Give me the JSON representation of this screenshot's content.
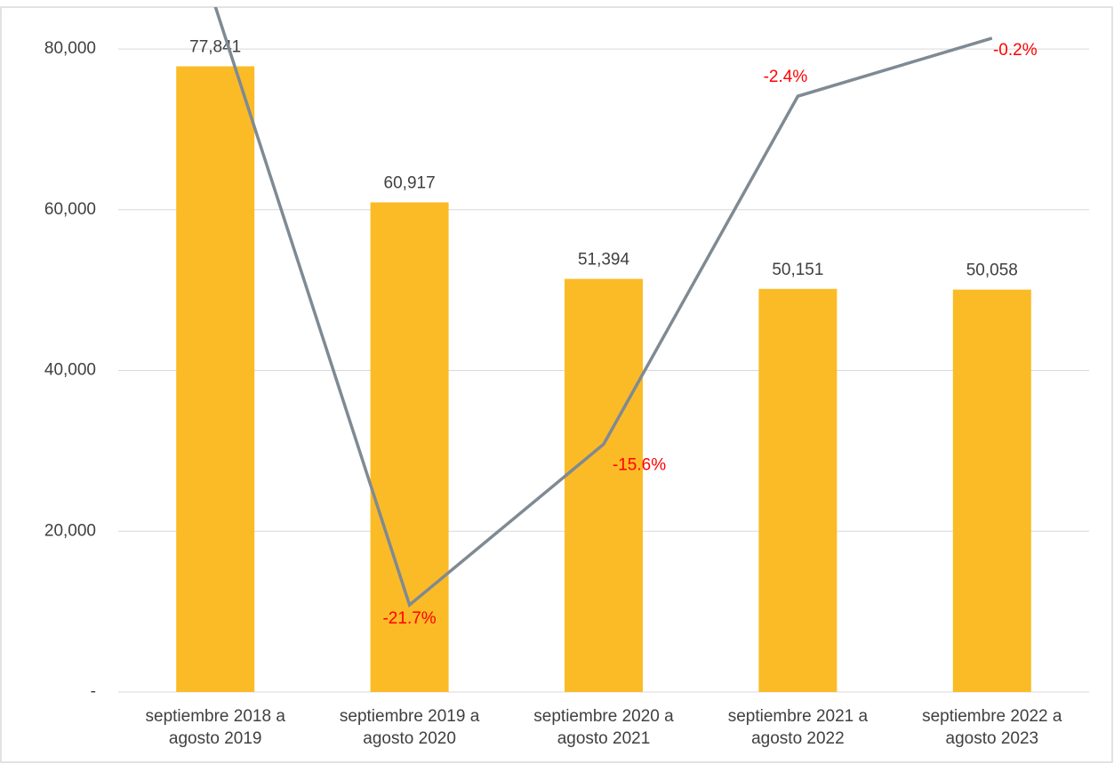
{
  "chart_data": {
    "type": "bar",
    "categories": [
      [
        "septiembre 2018 a",
        "agosto 2019"
      ],
      [
        "septiembre 2019 a",
        "agosto 2020"
      ],
      [
        "septiembre 2020 a",
        "agosto 2021"
      ],
      [
        "septiembre 2021 a",
        "agosto 2022"
      ],
      [
        "septiembre 2022 a",
        "agosto 2023"
      ]
    ],
    "series": [
      {
        "type": "bar",
        "color": "#fbbb27",
        "values": [
          77841,
          60917,
          51394,
          50151,
          50058
        ],
        "value_labels": [
          "77,841",
          "60,917",
          "51,394",
          "50,151",
          "50,058"
        ]
      },
      {
        "type": "line",
        "axis": "y2",
        "color": "#7f8a93",
        "label_color": "#ff0000",
        "values": [
          1,
          -21.7,
          -15.6,
          -2.4,
          -0.2
        ],
        "value_labels": [
          null,
          "-21.7%",
          "-15.6%",
          "-2.4%",
          "-0.2%"
        ]
      }
    ],
    "ylim": [
      0,
      82000
    ],
    "yticks": [
      {
        "value": 0,
        "label": "-"
      },
      {
        "value": 20000,
        "label": "20,000"
      },
      {
        "value": 40000,
        "label": "40,000"
      },
      {
        "value": 60000,
        "label": "60,000"
      },
      {
        "value": 80000,
        "label": "80,000"
      }
    ],
    "y2lim": [
      -25,
      0
    ],
    "grid": true
  }
}
